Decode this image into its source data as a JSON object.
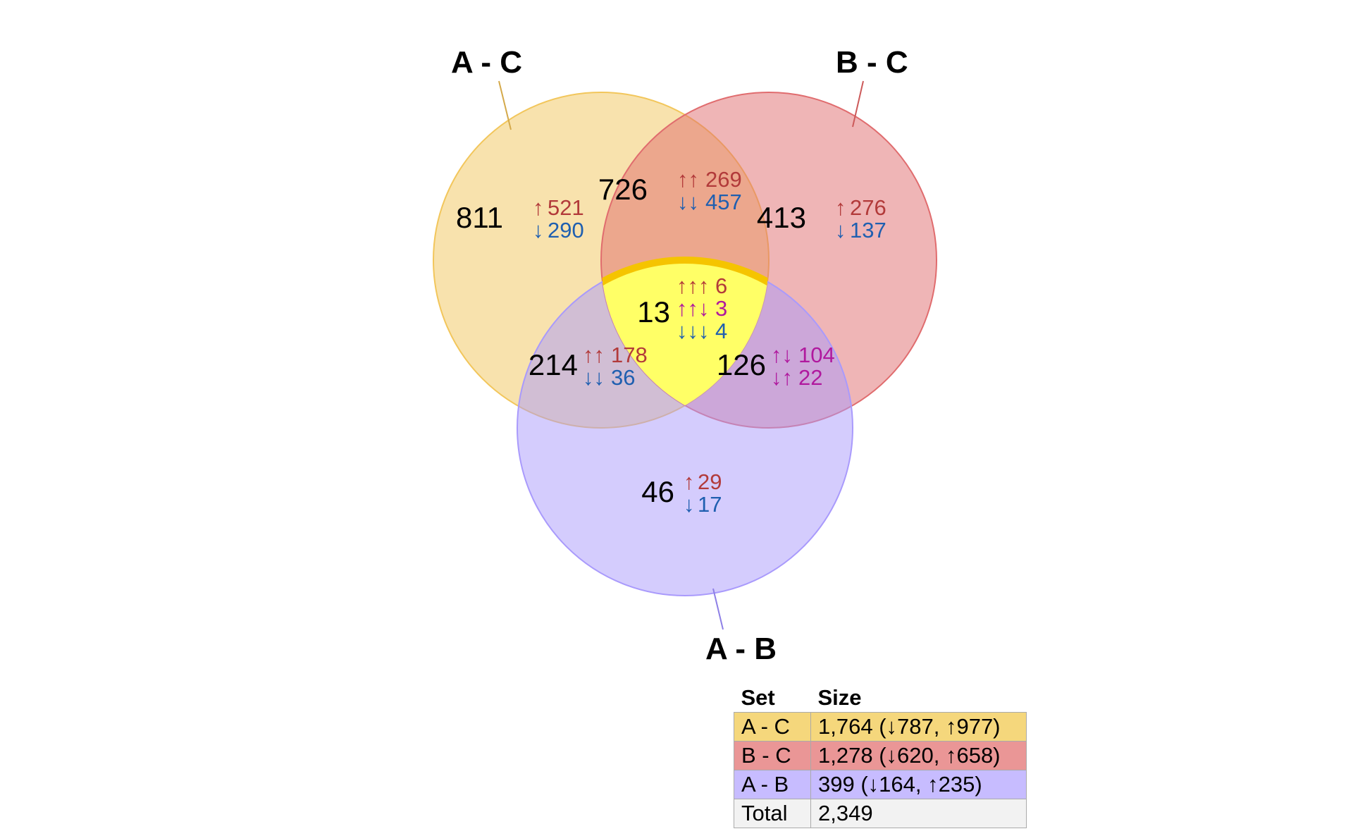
{
  "diagram": {
    "type": "venn3",
    "sets": [
      {
        "id": "ac",
        "label": "A - C",
        "color": "#f2c65b"
      },
      {
        "id": "bc",
        "label": "B - C",
        "color": "#e06c6e"
      },
      {
        "id": "ab",
        "label": "A - B",
        "color": "#a99afc"
      }
    ],
    "center_highlight_color": "#ffff66",
    "center_border_color": "#f5c400",
    "regions": [
      {
        "id": "ac_only",
        "total": "811",
        "lines": [
          {
            "arrows": "↑",
            "value": "521",
            "color": "#b23a3a"
          },
          {
            "arrows": "↓",
            "value": "290",
            "color": "#1f5fb0"
          }
        ]
      },
      {
        "id": "bc_only",
        "total": "413",
        "lines": [
          {
            "arrows": "↑",
            "value": "276",
            "color": "#b23a3a"
          },
          {
            "arrows": "↓",
            "value": "137",
            "color": "#1f5fb0"
          }
        ]
      },
      {
        "id": "ab_only",
        "total": "46",
        "lines": [
          {
            "arrows": "↑",
            "value": "29",
            "color": "#b23a3a"
          },
          {
            "arrows": "↓",
            "value": "17",
            "color": "#1f5fb0"
          }
        ]
      },
      {
        "id": "ac_bc",
        "total": "726",
        "lines": [
          {
            "arrows": "↑↑",
            "value": "269",
            "color": "#b23a3a"
          },
          {
            "arrows": "↓↓",
            "value": "457",
            "color": "#1f5fb0"
          }
        ]
      },
      {
        "id": "ac_ab",
        "total": "214",
        "lines": [
          {
            "arrows": "↑↑",
            "value": "178",
            "color": "#b23a3a"
          },
          {
            "arrows": "↓↓",
            "value": "36",
            "color": "#1f5fb0"
          }
        ]
      },
      {
        "id": "bc_ab",
        "total": "126",
        "lines": [
          {
            "arrows": "↑↓",
            "value": "104",
            "color": "#b0199e"
          },
          {
            "arrows": "↓↑",
            "value": "22",
            "color": "#b0199e"
          }
        ]
      },
      {
        "id": "all",
        "total": "13",
        "lines": [
          {
            "arrows": "↑↑↑",
            "value": "6",
            "color": "#b23a3a"
          },
          {
            "arrows": "↑↑↓",
            "value": "3",
            "color": "#b0199e"
          },
          {
            "arrows": "↓↓↓",
            "value": "4",
            "color": "#1f5fb0"
          }
        ]
      }
    ]
  },
  "legend": {
    "headers": {
      "set": "Set",
      "size": "Size"
    },
    "rows": [
      {
        "set": "A - C",
        "size": "1,764 (↓787, ↑977)",
        "color": "#f5d77c"
      },
      {
        "set": "B - C",
        "size": "1,278 (↓620, ↑658)",
        "color": "#ea9696"
      },
      {
        "set": "A - B",
        "size": "399 (↓164, ↑235)",
        "color": "#c7bcff"
      },
      {
        "set": "Total",
        "size": "2,349",
        "color": "#f2f2f2"
      }
    ]
  }
}
